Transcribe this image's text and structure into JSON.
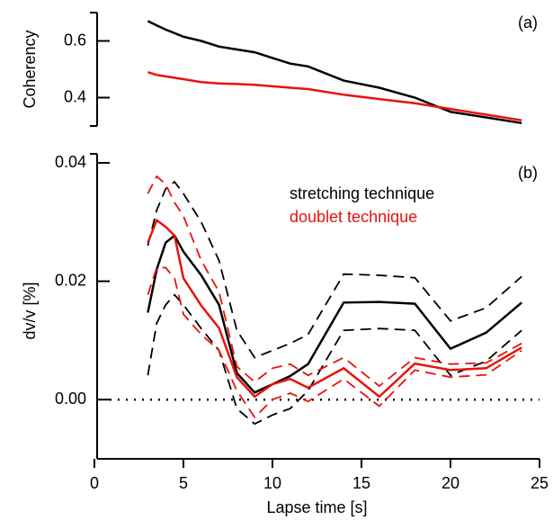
{
  "chart_data": [
    {
      "type": "line",
      "annotation": "(a)",
      "y_label": "Coherency",
      "x": [
        3,
        3.5,
        4,
        5,
        6,
        7,
        8,
        9,
        10,
        11,
        12,
        14,
        16,
        18,
        20,
        22,
        24
      ],
      "xlim": [
        0,
        25
      ],
      "ylim": [
        0.3,
        0.7
      ],
      "yticks": [
        0.4,
        0.6
      ],
      "series": [
        {
          "color": "#000000",
          "values": [
            0.67,
            0.655,
            0.64,
            0.615,
            0.6,
            0.58,
            0.57,
            0.56,
            0.54,
            0.52,
            0.51,
            0.46,
            0.435,
            0.4,
            0.35,
            0.33,
            0.31
          ]
        },
        {
          "color": "#e8120c",
          "values": [
            0.49,
            0.48,
            0.475,
            0.465,
            0.455,
            0.45,
            0.448,
            0.445,
            0.44,
            0.435,
            0.43,
            0.41,
            0.395,
            0.38,
            0.36,
            0.34,
            0.32
          ]
        }
      ]
    },
    {
      "type": "line",
      "annotation": "(b)",
      "x_label": "Lapse time [s]",
      "y_label": "dv/v [%]",
      "x": [
        3,
        3.5,
        4,
        4.5,
        5,
        6,
        7,
        8,
        9,
        10,
        11,
        12,
        14,
        16,
        18,
        20,
        22,
        24
      ],
      "xlim": [
        0,
        25
      ],
      "xticks": [
        0,
        5,
        10,
        15,
        20,
        25
      ],
      "ylim": [
        -0.01,
        0.04
      ],
      "yticks": [
        {
          "value": 0,
          "label": "0.00"
        },
        {
          "value": 0.02,
          "label": "0.02"
        },
        {
          "value": 0.04,
          "label": "0.04"
        }
      ],
      "reference_line": 0,
      "series": [
        {
          "name": "stretching technique",
          "color": "#000000",
          "dashed": false,
          "values": [
            0.0147,
            0.022,
            0.0265,
            0.0277,
            0.025,
            0.021,
            0.016,
            0.0045,
            0.0012,
            0.0026,
            0.004,
            0.006,
            0.0164,
            0.0165,
            0.0162,
            0.0086,
            0.0113,
            0.0164
          ]
        },
        {
          "color": "#000000",
          "dashed": true,
          "values": [
            0.026,
            0.032,
            0.0356,
            0.0368,
            0.0348,
            0.03,
            0.0235,
            0.0117,
            0.0071,
            0.0083,
            0.0095,
            0.011,
            0.0212,
            0.021,
            0.0206,
            0.0133,
            0.0155,
            0.0208
          ]
        },
        {
          "color": "#000000",
          "dashed": true,
          "values": [
            0.0041,
            0.0129,
            0.016,
            0.0177,
            0.016,
            0.012,
            0.0083,
            -0.0015,
            -0.0041,
            -0.0026,
            -0.0015,
            0.0015,
            0.0117,
            0.012,
            0.0117,
            0.0041,
            0.0065,
            0.0117
          ]
        },
        {
          "name": "doublet technique",
          "color": "#e8120c",
          "dashed": false,
          "values": [
            0.0265,
            0.0303,
            0.0292,
            0.0277,
            0.0205,
            0.0159,
            0.0121,
            0.0038,
            0.0005,
            0.0026,
            0.0035,
            0.002,
            0.0053,
            0.0005,
            0.0061,
            0.005,
            0.0053,
            0.0088
          ]
        },
        {
          "color": "#e8120c",
          "dashed": true,
          "values": [
            0.0348,
            0.0377,
            0.0364,
            0.0333,
            0.031,
            0.0235,
            0.0182,
            0.0056,
            0.003,
            0.0053,
            0.006,
            0.0041,
            0.0071,
            0.0023,
            0.0071,
            0.006,
            0.0062,
            0.0095
          ]
        },
        {
          "color": "#e8120c",
          "dashed": true,
          "values": [
            0.0177,
            0.0223,
            0.0223,
            0.0205,
            0.0144,
            0.011,
            0.0083,
            0.0015,
            -0.003,
            0,
            0.0011,
            -0.0003,
            0.0035,
            -0.0011,
            0.005,
            0.0038,
            0.0042,
            0.0083
          ]
        }
      ]
    }
  ]
}
